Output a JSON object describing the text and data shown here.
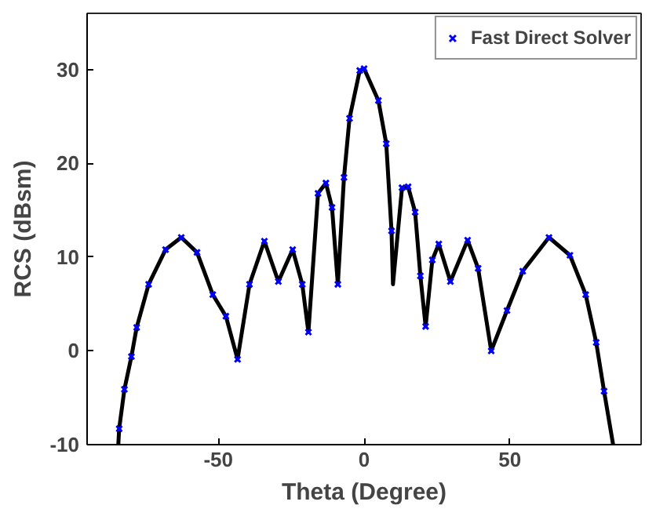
{
  "chart_data": {
    "type": "line",
    "xlabel": "Theta (Degree)",
    "ylabel": "RCS (dBsm)",
    "xlim": [
      -95,
      95
    ],
    "ylim": [
      -10,
      36
    ],
    "xticks": [
      -50,
      0,
      50
    ],
    "yticks": [
      -10,
      0,
      10,
      20,
      30
    ],
    "grid": false,
    "legend": "top right",
    "series": [
      {
        "color": "#000000",
        "line_style": "solid",
        "marker": "none",
        "x": [
          -84.3,
          -84,
          -82.2,
          -79.8,
          -78,
          -73.9,
          -68.1,
          -62.7,
          -57.3,
          -51.9,
          -47.4,
          -43.4,
          -39.3,
          -34.2,
          -29.4,
          -24.5,
          -21.2,
          -19.1,
          -15.8,
          -13.1,
          -11,
          -9,
          -6.9,
          -5,
          -1.5,
          0,
          4.9,
          7.6,
          9.4,
          9.9,
          13,
          15.1,
          17.5,
          19.3,
          21.1,
          23.4,
          25.6,
          29.6,
          35.5,
          39.1,
          43.6,
          49,
          54.4,
          63.4,
          70.6,
          76,
          79.6,
          82.3,
          85.4
        ],
        "values": [
          -10,
          -8.3,
          -4.1,
          -0.6,
          2.5,
          7.1,
          10.8,
          12.1,
          10.5,
          6,
          3.7,
          -0.9,
          7.1,
          11.7,
          7.4,
          10.8,
          7.1,
          2,
          16.8,
          17.9,
          15.3,
          7.1,
          18.5,
          24.8,
          29.9,
          30.1,
          26.7,
          22.1,
          12.8,
          7.1,
          17.4,
          17.5,
          14.8,
          8,
          2.6,
          9.7,
          11.4,
          7.4,
          11.8,
          8.8,
          0,
          4.3,
          8.5,
          12.1,
          10.2,
          6,
          0.9,
          -4.3,
          -10
        ]
      },
      {
        "type": "scatter",
        "name": "Fast Direct Solver",
        "color": "#0000ff",
        "marker": "cross",
        "x": [
          -84,
          -82.2,
          -79.8,
          -78,
          -73.9,
          -68.1,
          -62.7,
          -57.3,
          -51.9,
          -47.4,
          -43.4,
          -39.3,
          -34.2,
          -29.4,
          -24.5,
          -21.2,
          -19.1,
          -15.8,
          -13.1,
          -11,
          -9,
          -6.9,
          -5,
          -1.5,
          0,
          4.9,
          7.6,
          9.4,
          13,
          15.1,
          17.5,
          19.3,
          21.1,
          23.4,
          25.6,
          29.6,
          35.5,
          39.1,
          43.6,
          49,
          54.4,
          63.4,
          70.6,
          76,
          79.6,
          82.3
        ],
        "values": [
          -8.3,
          -4.1,
          -0.6,
          2.5,
          7.1,
          10.8,
          12.1,
          10.5,
          6,
          3.7,
          -0.9,
          7.1,
          11.7,
          7.4,
          10.8,
          7.1,
          2,
          16.8,
          17.9,
          15.3,
          7.1,
          18.5,
          24.8,
          29.9,
          30.1,
          26.7,
          22.1,
          12.8,
          17.4,
          17.5,
          14.8,
          8,
          2.6,
          9.7,
          11.4,
          7.4,
          11.8,
          8.8,
          0,
          4.3,
          8.5,
          12.1,
          10.2,
          6,
          0.9,
          -4.3
        ]
      }
    ]
  }
}
